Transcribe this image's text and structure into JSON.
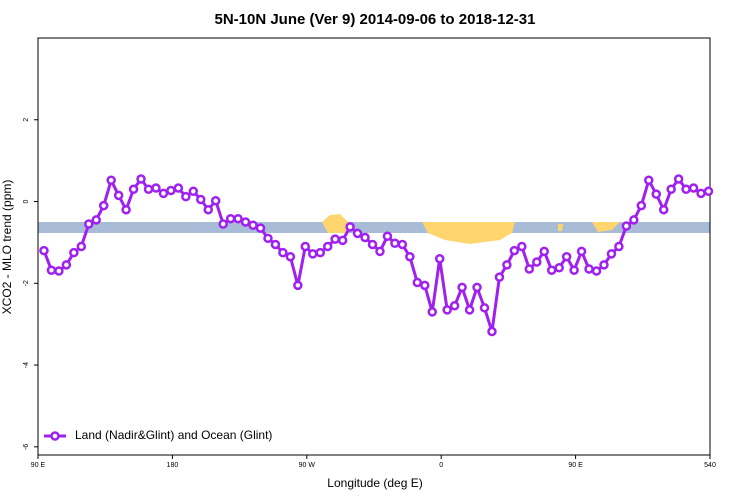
{
  "chart_data": {
    "type": "line",
    "title": "5N-10N June (Ver 9)   2014-09-06 to 2018-12-31",
    "x_label": "Longitude (deg E)",
    "y_label": "XCO2 - MLO trend (ppm)",
    "x": [
      94,
      99,
      104,
      109,
      114,
      119,
      124,
      129,
      134,
      139,
      144,
      149,
      154,
      159,
      164,
      169,
      174,
      179,
      184,
      189,
      194,
      199,
      204,
      209,
      214,
      219,
      224,
      229,
      234,
      239,
      244,
      249,
      254,
      259,
      264,
      269,
      274,
      279,
      284,
      289,
      294,
      299,
      304,
      309,
      314,
      319,
      324,
      329,
      334,
      339,
      344,
      349,
      354,
      359,
      364,
      369,
      374,
      379,
      384,
      389,
      394,
      399,
      404,
      409,
      414,
      419,
      424,
      429,
      434,
      439,
      444,
      449,
      454,
      459,
      464,
      469,
      474,
      479,
      484,
      489,
      494,
      499,
      504,
      509,
      514,
      519,
      524,
      529,
      534,
      539
    ],
    "series": [
      {
        "name": "Land (Nadir&Glint) and Ocean (Glint)",
        "color": "#a020f0",
        "values": [
          -1.2,
          -1.68,
          -1.7,
          -1.55,
          -1.25,
          -1.1,
          -0.55,
          -0.45,
          -0.1,
          0.52,
          0.15,
          -0.2,
          0.3,
          0.55,
          0.3,
          0.33,
          0.2,
          0.27,
          0.33,
          0.12,
          0.25,
          0.05,
          -0.2,
          0.02,
          -0.55,
          -0.42,
          -0.42,
          -0.5,
          -0.58,
          -0.65,
          -0.9,
          -1.05,
          -1.25,
          -1.35,
          -2.05,
          -1.1,
          -1.28,
          -1.25,
          -1.1,
          -0.92,
          -0.95,
          -0.62,
          -0.78,
          -0.88,
          -1.05,
          -1.22,
          -0.85,
          -1.02,
          -1.05,
          -1.35,
          -1.98,
          -2.05,
          -2.7,
          -1.4,
          -2.65,
          -2.55,
          -2.1,
          -2.65,
          -2.1,
          -2.6,
          -3.18,
          -1.85,
          -1.55,
          -1.2,
          -1.1,
          -1.65,
          -1.48,
          -1.22,
          -1.68,
          -1.62,
          -1.35,
          -1.68,
          -1.22,
          -1.65,
          -1.7,
          -1.55,
          -1.28,
          -1.1,
          -0.6,
          -0.45,
          -0.1,
          0.52,
          0.18,
          -0.2,
          0.3,
          0.55,
          0.3,
          0.33,
          0.2,
          0.25
        ]
      }
    ],
    "xlim": [
      90,
      540
    ],
    "xticks": [
      {
        "value": 90,
        "label": "90 E"
      },
      180,
      {
        "value": 270,
        "label": "90 W"
      },
      {
        "value": 360,
        "label": "0"
      },
      {
        "value": 450,
        "label": "90 E"
      },
      540
    ],
    "ylim": [
      -6.2,
      4
    ],
    "yticks": [
      -6,
      -4,
      -2,
      0,
      2
    ],
    "legend": "bottom-left"
  }
}
